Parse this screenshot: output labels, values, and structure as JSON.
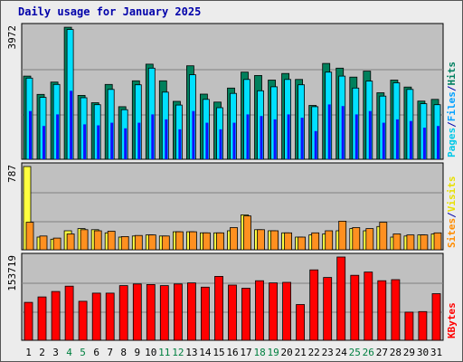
{
  "chart_data": {
    "type": "bar",
    "title": "Daily usage for January 2025",
    "categories": [
      "1",
      "2",
      "3",
      "4",
      "5",
      "6",
      "7",
      "8",
      "9",
      "10",
      "11",
      "12",
      "13",
      "14",
      "15",
      "16",
      "17",
      "18",
      "19",
      "20",
      "21",
      "22",
      "23",
      "24",
      "25",
      "26",
      "27",
      "28",
      "29",
      "30",
      "31"
    ],
    "weekend_days": [
      "4",
      "5",
      "11",
      "12",
      "18",
      "19",
      "25",
      "26"
    ],
    "panels": [
      {
        "name": "hits-files-pages",
        "max_label": "3972",
        "ymax": 3972,
        "legend": [
          {
            "text": "Pages",
            "color": "#00c8e8"
          },
          {
            "text": "/",
            "color": "#0000aa"
          },
          {
            "text": "Files",
            "color": "#00a0ff"
          },
          {
            "text": "/",
            "color": "#0000aa"
          },
          {
            "text": "Hits",
            "color": "#008060"
          }
        ],
        "series": [
          {
            "name": "Hits",
            "color": "#00805c",
            "values": [
              2500,
              1950,
              2320,
              3970,
              1920,
              1700,
              2250,
              1580,
              2360,
              2860,
              2360,
              1740,
              2810,
              1960,
              1720,
              2140,
              2620,
              2520,
              2380,
              2580,
              2400,
              1620,
              2880,
              2740,
              2470,
              2650,
              2000,
              2380,
              2170,
              1750,
              1800
            ]
          },
          {
            "name": "Files",
            "color": "#00e0ff",
            "values": [
              2440,
              1860,
              2250,
              3900,
              1850,
              1640,
              2100,
              1490,
              2240,
              2740,
              2020,
              1630,
              2540,
              1800,
              1550,
              1980,
              2400,
              2060,
              2180,
              2400,
              2240,
              1580,
              2620,
              2500,
              2140,
              2350,
              1900,
              2300,
              2100,
              1670,
              1640
            ]
          },
          {
            "name": "Pages",
            "color": "#1010ff",
            "values": [
              1450,
              1000,
              1350,
              2060,
              1050,
              1020,
              1100,
              930,
              1100,
              1350,
              1200,
              900,
              1450,
              1100,
              900,
              1100,
              1350,
              1300,
              1200,
              1350,
              1250,
              850,
              1650,
              1600,
              1350,
              1450,
              1100,
              1200,
              1150,
              950,
              1000
            ]
          }
        ]
      },
      {
        "name": "visits-sites",
        "max_label": "787",
        "ymax": 787,
        "legend": [
          {
            "text": "Sites",
            "color": "#ff8c00"
          },
          {
            "text": "/",
            "color": "#0000aa"
          },
          {
            "text": "Visits",
            "color": "#e8e000"
          }
        ],
        "series": [
          {
            "name": "Visits",
            "color": "#ffff40",
            "values": [
              787,
              120,
              100,
              180,
              200,
              190,
              160,
              120,
              130,
              140,
              130,
              170,
              170,
              160,
              160,
              180,
              330,
              190,
              180,
              160,
              120,
              140,
              150,
              180,
              200,
              180,
              220,
              120,
              130,
              140,
              150
            ]
          },
          {
            "name": "Sites",
            "color": "#ff9020",
            "values": [
              260,
              130,
              110,
              150,
              190,
              180,
              175,
              125,
              135,
              140,
              130,
              170,
              170,
              160,
              160,
              210,
              320,
              190,
              180,
              160,
              120,
              160,
              180,
              270,
              210,
              200,
              260,
              150,
              140,
              140,
              160
            ]
          }
        ]
      },
      {
        "name": "kbytes",
        "max_label": "153719",
        "ymax": 153719,
        "legend": [
          {
            "text": "KBytes",
            "color": "#ff0000"
          }
        ],
        "series": [
          {
            "name": "KBytes",
            "color": "#ff0000",
            "values": [
              70000,
              80000,
              90000,
              100000,
              72000,
              87000,
              87000,
              101000,
              104000,
              103000,
              101000,
              104000,
              106000,
              98000,
              118000,
              102000,
              96000,
              110000,
              106000,
              107000,
              66000,
              130000,
              116000,
              153719,
              120000,
              126000,
              110000,
              112000,
              52000,
              53000,
              86000
            ]
          }
        ]
      }
    ]
  }
}
